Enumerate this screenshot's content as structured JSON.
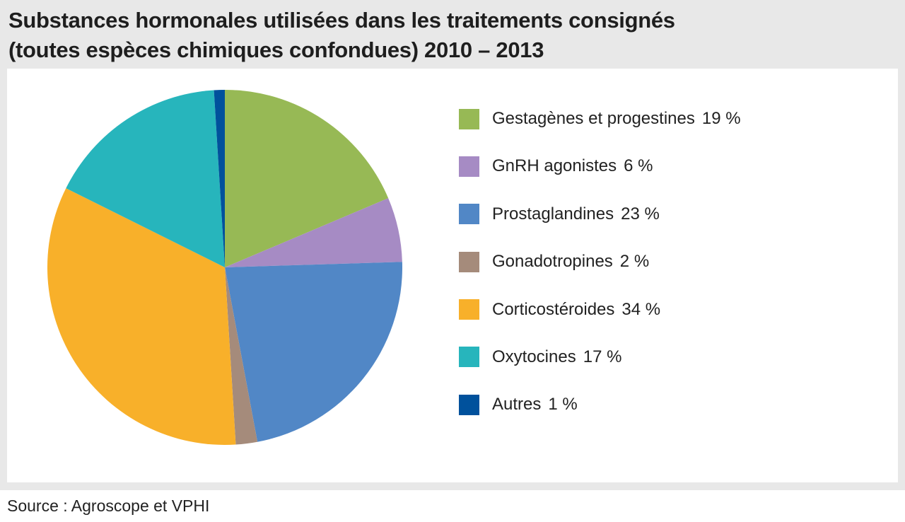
{
  "title": {
    "line1": "Substances hormonales utilisées dans les traitements consignés",
    "line2": "(toutes espèces chimiques confondues) 2010 – 2013"
  },
  "source": "Source : Agroscope et VPHI",
  "chart_data": {
    "type": "pie",
    "title": "Substances hormonales utilisées dans les traitements consignés (toutes espèces chimiques confondues) 2010 – 2013",
    "start": "12 o'clock, clockwise",
    "legend_position": "right",
    "slices": [
      {
        "label": "Gestagènes et progestines",
        "value": 19,
        "value_label": "19 %",
        "color": "#97b955"
      },
      {
        "label": "GnRH agonistes",
        "value": 6,
        "value_label": "6 %",
        "color": "#a68bc4"
      },
      {
        "label": "Prostaglandines",
        "value": 23,
        "value_label": "23 %",
        "color": "#5187c6"
      },
      {
        "label": "Gonadotropines",
        "value": 2,
        "value_label": "2 %",
        "color": "#a58b7b"
      },
      {
        "label": "Corticostéroides",
        "value": 34,
        "value_label": "34 %",
        "color": "#f8b02a"
      },
      {
        "label": "Oxytocines",
        "value": 17,
        "value_label": "17 %",
        "color": "#27b5bc"
      },
      {
        "label": "Autres",
        "value": 1,
        "value_label": "1 %",
        "color": "#00519c"
      }
    ]
  }
}
